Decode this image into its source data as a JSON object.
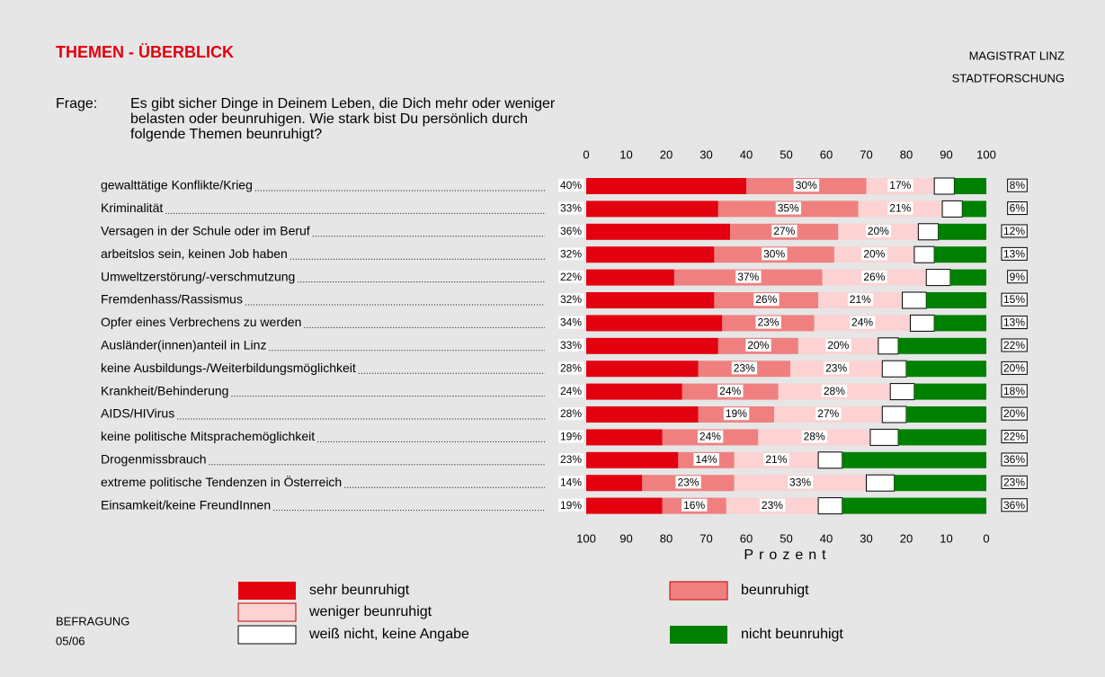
{
  "chart_data": {
    "type": "stacked-bar-horizontal",
    "title": "THEMEN - ÜBERBLICK",
    "header_right": [
      "MAGISTRAT LINZ",
      "STADTFORSCHUNG"
    ],
    "question_label": "Frage:",
    "question": [
      "Es gibt sicher Dinge in Deinem Leben, die Dich mehr oder weniger",
      "belasten oder beunruhigen. Wie stark bist Du persönlich durch",
      "folgende Themen beunruhigt?"
    ],
    "footer": [
      "BEFRAGUNG",
      "05/06"
    ],
    "xlabel": "Prozent",
    "xlim": [
      0,
      100
    ],
    "xticks": [
      0,
      10,
      20,
      30,
      40,
      50,
      60,
      70,
      80,
      90,
      100
    ],
    "x2lim": [
      100,
      0
    ],
    "x2ticks": [
      100,
      90,
      80,
      70,
      60,
      50,
      40,
      30,
      20,
      10,
      0
    ],
    "categories": [
      "gewalttätige Konflikte/Krieg",
      "Kriminalität",
      "Versagen in der Schule oder im Beruf",
      "arbeitslos sein, keinen Job haben",
      "Umweltzerstörung/-verschmutzung",
      "Fremdenhass/Rassismus",
      "Opfer eines Verbrechens zu werden",
      "Ausländer(innen)anteil in Linz",
      "keine Ausbildungs-/Weiterbildungsmöglichkeit",
      "Krankheit/Behinderung",
      "AIDS/HIVirus",
      "keine politische Mitsprachemöglichkeit",
      "Drogenmissbrauch",
      "extreme politische Tendenzen in Österreich",
      "Einsamkeit/keine FreundInnen"
    ],
    "series": [
      {
        "name": "sehr beunruhigt",
        "color": "#e3000f",
        "values": [
          40,
          33,
          36,
          32,
          22,
          32,
          34,
          33,
          28,
          24,
          28,
          19,
          23,
          14,
          19
        ],
        "value_labels": [
          "40%",
          "33%",
          "36%",
          "32%",
          "22%",
          "32%",
          "34%",
          "33%",
          "28%",
          "24%",
          "28%",
          "19%",
          "23%",
          "14%",
          "19%"
        ]
      },
      {
        "name": "beunruhigt",
        "color": "#f08080",
        "values": [
          30,
          35,
          27,
          30,
          37,
          26,
          23,
          20,
          23,
          24,
          19,
          24,
          14,
          23,
          16
        ],
        "value_labels": [
          "30%",
          "35%",
          "27%",
          "30%",
          "37%",
          "26%",
          "23%",
          "20%",
          "23%",
          "24%",
          "19%",
          "24%",
          "14%",
          "23%",
          "16%"
        ]
      },
      {
        "name": "weniger beunruhigt",
        "color": "#fcd2d2",
        "values": [
          17,
          21,
          20,
          20,
          26,
          21,
          24,
          20,
          23,
          28,
          27,
          28,
          21,
          33,
          23
        ],
        "value_labels": [
          "17%",
          "21%",
          "20%",
          "20%",
          "26%",
          "21%",
          "24%",
          "20%",
          "23%",
          "28%",
          "27%",
          "28%",
          "21%",
          "33%",
          "23%"
        ]
      },
      {
        "name": "weiß nicht, keine Angabe",
        "color": "#ffffff",
        "values": [
          5,
          5,
          5,
          5,
          6,
          6,
          6,
          5,
          6,
          6,
          6,
          7,
          6,
          7,
          6
        ]
      },
      {
        "name": "nicht beunruhigt",
        "color": "#008000",
        "values": [
          8,
          6,
          12,
          13,
          9,
          15,
          13,
          22,
          20,
          18,
          20,
          22,
          36,
          23,
          36
        ],
        "value_labels": [
          "8%",
          "6%",
          "12%",
          "13%",
          "9%",
          "15%",
          "13%",
          "22%",
          "20%",
          "18%",
          "20%",
          "22%",
          "36%",
          "23%",
          "36%"
        ]
      }
    ]
  }
}
